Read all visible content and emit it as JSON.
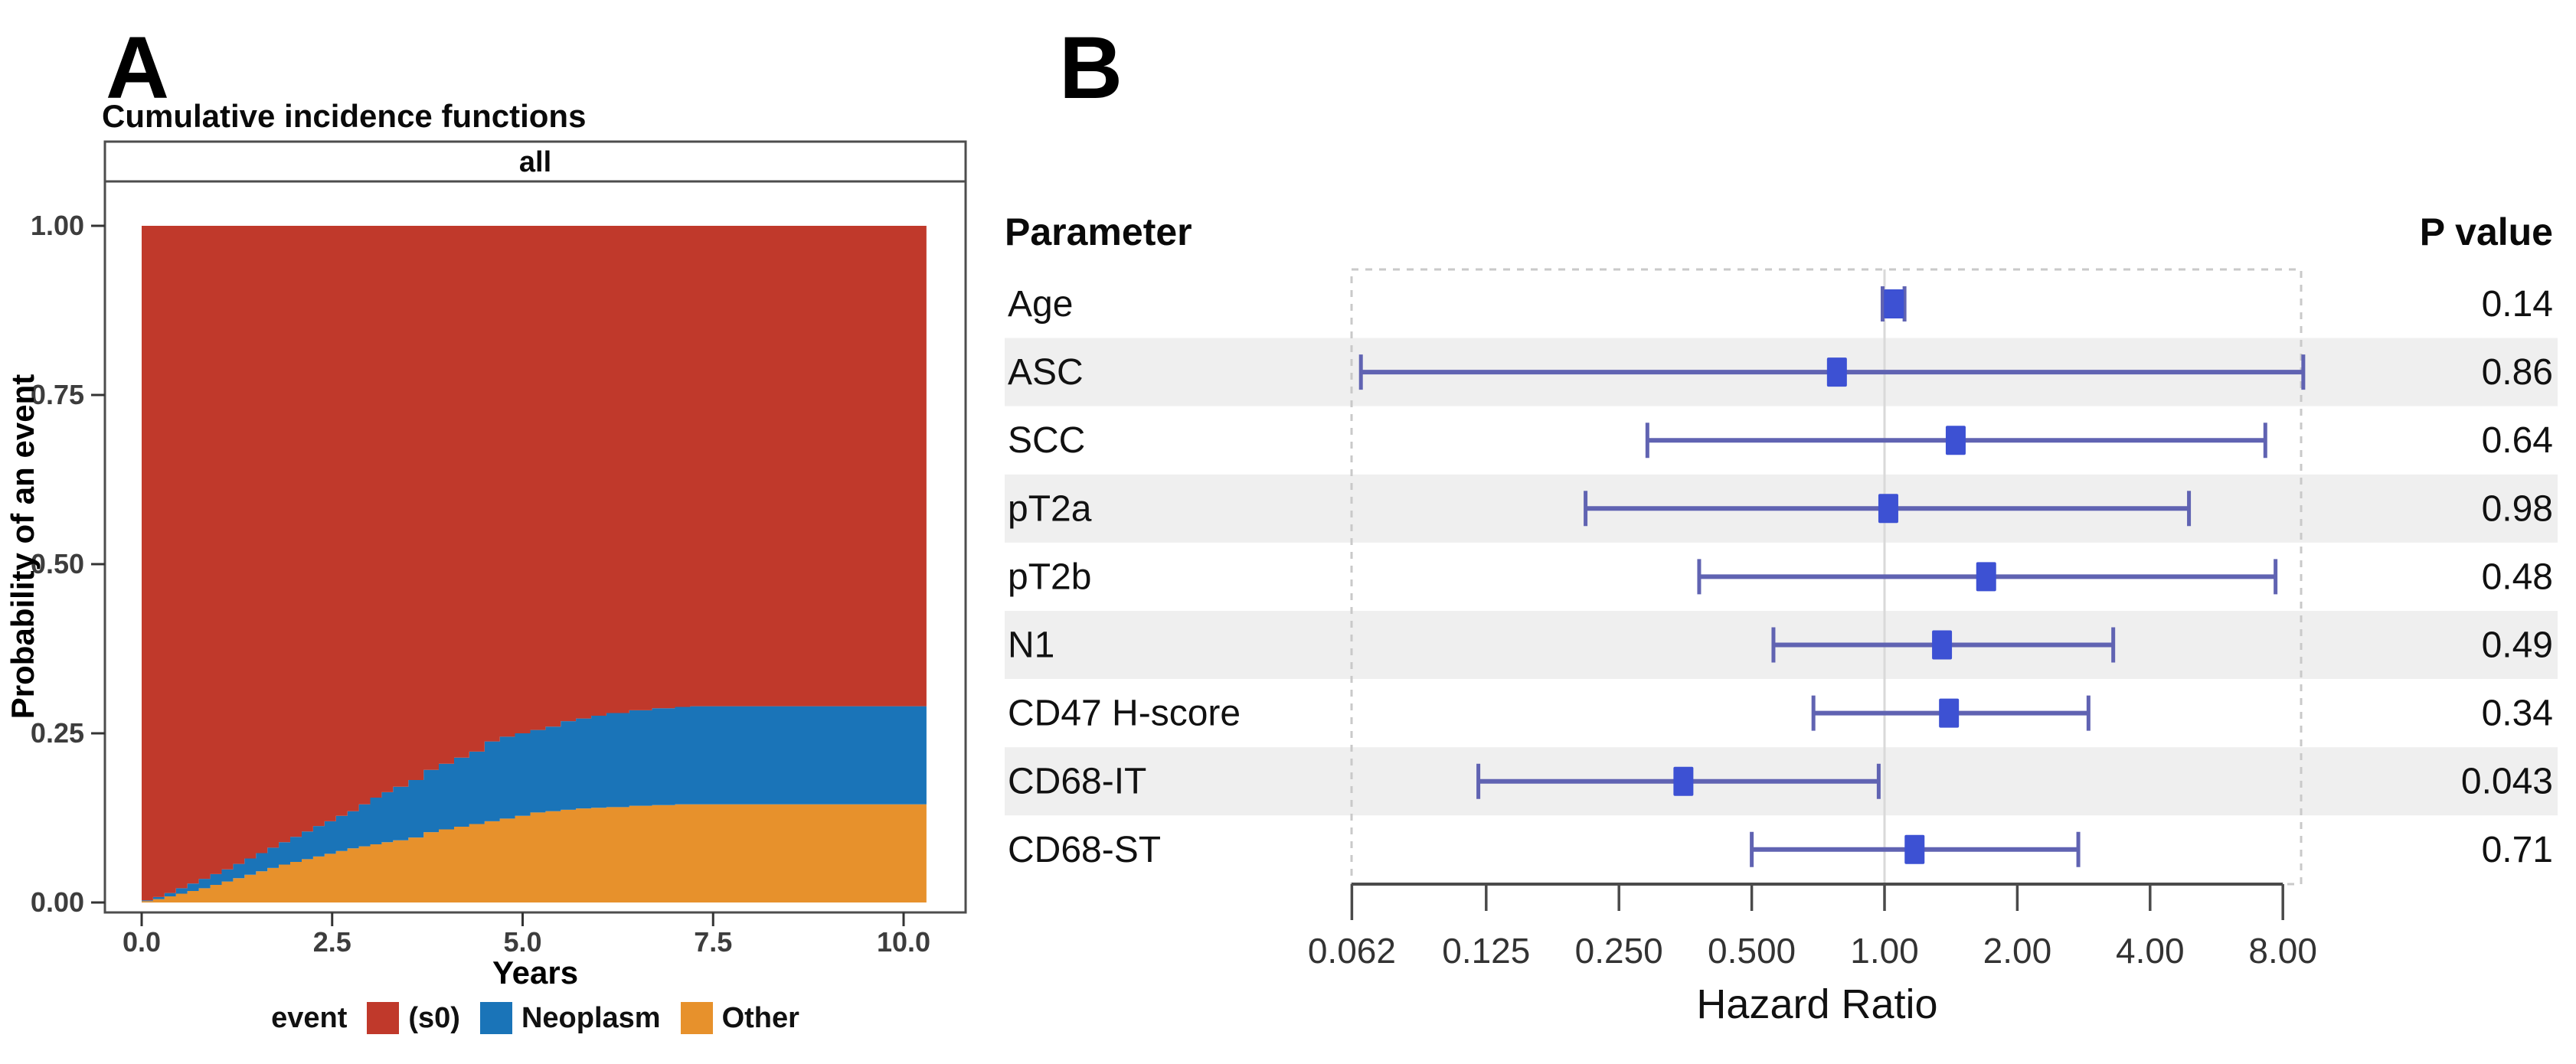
{
  "panel_a": {
    "panel_label": "A"
  },
  "panel_b": {
    "panel_label": "B"
  },
  "chart_data": [
    {
      "type": "area",
      "subtype": "stacked-step-cumulative-incidence",
      "title": "Cumulative incidence functions",
      "facet": "all",
      "xlabel": "Years",
      "ylabel": "Probability of an event",
      "xlim": [
        0,
        10.3
      ],
      "ylim": [
        0,
        1
      ],
      "grid": false,
      "x_ticks": [
        {
          "v": 0.0,
          "label": "0.0"
        },
        {
          "v": 2.5,
          "label": "2.5"
        },
        {
          "v": 5.0,
          "label": "5.0"
        },
        {
          "v": 7.5,
          "label": "7.5"
        },
        {
          "v": 10.0,
          "label": "10.0"
        }
      ],
      "y_ticks": [
        {
          "v": 0.0,
          "label": "0.00"
        },
        {
          "v": 0.25,
          "label": "0.25"
        },
        {
          "v": 0.5,
          "label": "0.50"
        },
        {
          "v": 0.75,
          "label": "0.75"
        },
        {
          "v": 1.0,
          "label": "1.00"
        }
      ],
      "legend_title": "event",
      "legend_position": "bottom",
      "series": [
        {
          "name": "(s0)",
          "color": "#c0392b",
          "role": "remainder-to-1"
        },
        {
          "name": "Neoplasm",
          "color": "#1a74b8",
          "role": "middle-stack"
        },
        {
          "name": "Other",
          "color": "#e7912c",
          "role": "bottom-stack"
        }
      ],
      "t": [
        0,
        0.15,
        0.3,
        0.45,
        0.6,
        0.75,
        0.9,
        1.05,
        1.2,
        1.35,
        1.5,
        1.65,
        1.8,
        1.95,
        2.1,
        2.25,
        2.4,
        2.55,
        2.7,
        2.85,
        3.0,
        3.15,
        3.3,
        3.5,
        3.7,
        3.9,
        4.1,
        4.3,
        4.5,
        4.7,
        4.9,
        5.1,
        5.3,
        5.5,
        5.7,
        5.9,
        6.1,
        6.4,
        6.7,
        7.0,
        7.2,
        10.3
      ],
      "other_cum": [
        0.002,
        0.005,
        0.009,
        0.013,
        0.017,
        0.021,
        0.026,
        0.031,
        0.036,
        0.041,
        0.046,
        0.051,
        0.056,
        0.06,
        0.064,
        0.068,
        0.072,
        0.076,
        0.08,
        0.083,
        0.086,
        0.089,
        0.092,
        0.096,
        0.104,
        0.108,
        0.112,
        0.116,
        0.12,
        0.124,
        0.128,
        0.133,
        0.135,
        0.137,
        0.139,
        0.14,
        0.141,
        0.143,
        0.144,
        0.145,
        0.145,
        0.145
      ],
      "neoplasm_plus_other_cum": [
        0.003,
        0.008,
        0.014,
        0.021,
        0.028,
        0.035,
        0.042,
        0.049,
        0.057,
        0.065,
        0.073,
        0.081,
        0.089,
        0.097,
        0.105,
        0.113,
        0.12,
        0.128,
        0.135,
        0.145,
        0.155,
        0.163,
        0.171,
        0.181,
        0.196,
        0.205,
        0.214,
        0.223,
        0.238,
        0.245,
        0.25,
        0.255,
        0.26,
        0.268,
        0.272,
        0.276,
        0.28,
        0.284,
        0.287,
        0.289,
        0.29,
        0.29
      ]
    },
    {
      "type": "forest",
      "xlabel": "Hazard Ratio",
      "scale": "log2",
      "xlim": [
        0.062,
        8.8
      ],
      "ref_line": 1,
      "columns": {
        "parameter": "Parameter",
        "p_value": "P value"
      },
      "x_ticks": [
        {
          "v": 0.062,
          "label": "0.062"
        },
        {
          "v": 0.125,
          "label": "0.125"
        },
        {
          "v": 0.25,
          "label": "0.250"
        },
        {
          "v": 0.5,
          "label": "0.500"
        },
        {
          "v": 1,
          "label": "1.00"
        },
        {
          "v": 2,
          "label": "2.00"
        },
        {
          "v": 4,
          "label": "4.00"
        },
        {
          "v": 8,
          "label": "8.00"
        }
      ],
      "rows": [
        {
          "parameter": "Age",
          "hr": 1.05,
          "ci_low": 0.99,
          "ci_high": 1.11,
          "p_value": "0.14",
          "shaded": false
        },
        {
          "parameter": "ASC",
          "hr": 0.78,
          "ci_low": 0.065,
          "ci_high": 8.9,
          "p_value": "0.86",
          "shaded": true
        },
        {
          "parameter": "SCC",
          "hr": 1.45,
          "ci_low": 0.29,
          "ci_high": 7.3,
          "p_value": "0.64",
          "shaded": false
        },
        {
          "parameter": "pT2a",
          "hr": 1.02,
          "ci_low": 0.21,
          "ci_high": 4.9,
          "p_value": "0.98",
          "shaded": true
        },
        {
          "parameter": "pT2b",
          "hr": 1.7,
          "ci_low": 0.38,
          "ci_high": 7.7,
          "p_value": "0.48",
          "shaded": false
        },
        {
          "parameter": "N1",
          "hr": 1.35,
          "ci_low": 0.56,
          "ci_high": 3.3,
          "p_value": "0.49",
          "shaded": true
        },
        {
          "parameter": "CD47 H-score",
          "hr": 1.4,
          "ci_low": 0.69,
          "ci_high": 2.9,
          "p_value": "0.34",
          "shaded": false
        },
        {
          "parameter": "CD68-IT",
          "hr": 0.35,
          "ci_low": 0.12,
          "ci_high": 0.97,
          "p_value": "0.043",
          "shaded": true
        },
        {
          "parameter": "CD68-ST",
          "hr": 1.17,
          "ci_low": 0.5,
          "ci_high": 2.75,
          "p_value": "0.71",
          "shaded": false
        }
      ],
      "colors": {
        "square": "#3d51d3",
        "whisker": "#6063b2",
        "band": "#efefef",
        "ref_line": "#d9d9d9",
        "border_dash": "#c9c9c9",
        "axis": "#4a4a4a"
      }
    }
  ]
}
